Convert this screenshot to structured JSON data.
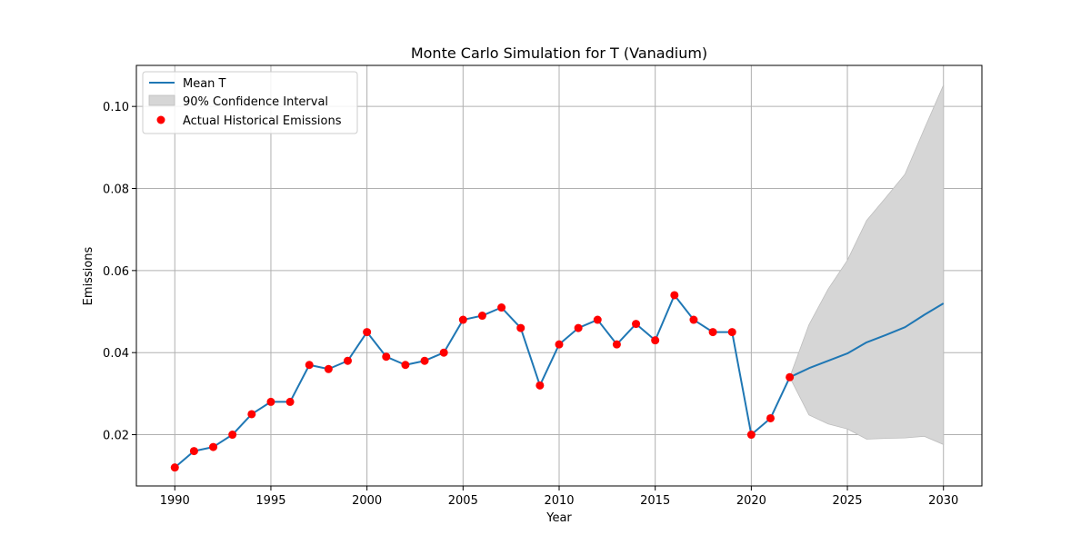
{
  "chart_data": {
    "type": "line",
    "title": "Monte Carlo Simulation for T (Vanadium)",
    "xlabel": "Year",
    "ylabel": "Emissions",
    "xlim": [
      1988,
      2032
    ],
    "ylim": [
      0.0075,
      0.11
    ],
    "xticks": [
      1990,
      1995,
      2000,
      2005,
      2010,
      2015,
      2020,
      2025,
      2030
    ],
    "xtick_labels": [
      "1990",
      "1995",
      "2000",
      "2005",
      "2010",
      "2015",
      "2020",
      "2025",
      "2030"
    ],
    "yticks": [
      0.02,
      0.04,
      0.06,
      0.08,
      0.1
    ],
    "ytick_labels": [
      "0.02",
      "0.04",
      "0.06",
      "0.08",
      "0.10"
    ],
    "grid": true,
    "legend_position": "top-left",
    "legend": {
      "mean_label": "Mean T",
      "ci_label": "90% Confidence Interval",
      "actual_label": "Actual Historical Emissions"
    },
    "colors": {
      "mean": "#1f77b4",
      "ci_fill": "#d6d6d6",
      "ci_edge": "#bdbdbd",
      "actual": "#ff0000",
      "grid": "#b0b0b0"
    },
    "mean": {
      "x": [
        1990,
        1991,
        1992,
        1993,
        1994,
        1995,
        1996,
        1997,
        1998,
        1999,
        2000,
        2001,
        2002,
        2003,
        2004,
        2005,
        2006,
        2007,
        2008,
        2009,
        2010,
        2011,
        2012,
        2013,
        2014,
        2015,
        2016,
        2017,
        2018,
        2019,
        2020,
        2021,
        2022,
        2023,
        2024,
        2025,
        2026,
        2027,
        2028,
        2029,
        2030
      ],
      "y": [
        0.012,
        0.016,
        0.017,
        0.02,
        0.025,
        0.028,
        0.028,
        0.037,
        0.036,
        0.038,
        0.045,
        0.039,
        0.037,
        0.038,
        0.04,
        0.048,
        0.049,
        0.051,
        0.046,
        0.032,
        0.042,
        0.046,
        0.048,
        0.042,
        0.047,
        0.043,
        0.054,
        0.048,
        0.045,
        0.045,
        0.02,
        0.024,
        0.034,
        0.0362,
        0.038,
        0.0398,
        0.0425,
        0.0443,
        0.0462,
        0.0492,
        0.052
      ]
    },
    "ci": {
      "x": [
        2022,
        2023,
        2024,
        2025,
        2026,
        2027,
        2028,
        2029,
        2030
      ],
      "lower": [
        0.034,
        0.0248,
        0.0226,
        0.0214,
        0.0189,
        0.0191,
        0.0192,
        0.0196,
        0.0176
      ],
      "upper": [
        0.034,
        0.0468,
        0.0555,
        0.0625,
        0.0722,
        0.0778,
        0.0835,
        0.0945,
        0.1052
      ]
    },
    "actual": {
      "x": [
        1990,
        1991,
        1992,
        1993,
        1994,
        1995,
        1996,
        1997,
        1998,
        1999,
        2000,
        2001,
        2002,
        2003,
        2004,
        2005,
        2006,
        2007,
        2008,
        2009,
        2010,
        2011,
        2012,
        2013,
        2014,
        2015,
        2016,
        2017,
        2018,
        2019,
        2020,
        2021,
        2022
      ],
      "y": [
        0.012,
        0.016,
        0.017,
        0.02,
        0.025,
        0.028,
        0.028,
        0.037,
        0.036,
        0.038,
        0.045,
        0.039,
        0.037,
        0.038,
        0.04,
        0.048,
        0.049,
        0.051,
        0.046,
        0.032,
        0.042,
        0.046,
        0.048,
        0.042,
        0.047,
        0.043,
        0.054,
        0.048,
        0.045,
        0.045,
        0.02,
        0.024,
        0.034
      ]
    }
  }
}
